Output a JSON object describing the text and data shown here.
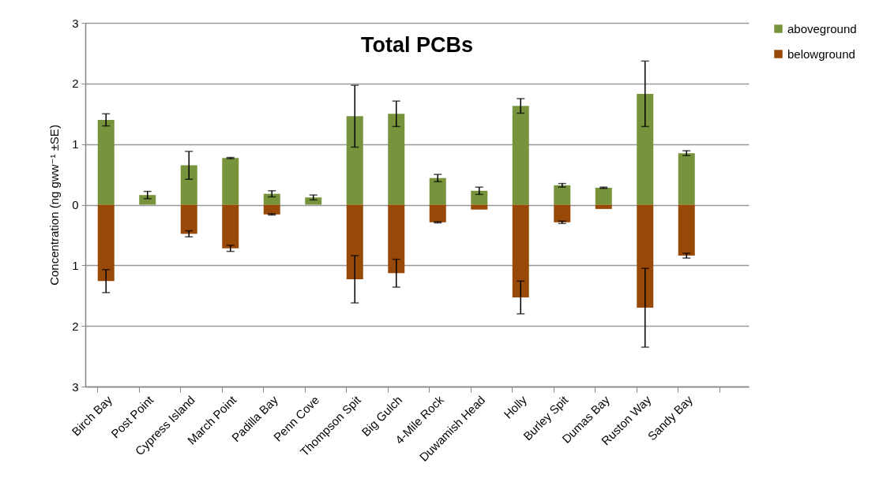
{
  "chart_data": {
    "type": "bar",
    "title": "Total PCBs",
    "ylabel": "Concentration (ng gww⁻¹  ±SE)",
    "categories": [
      "Birch Bay",
      "Post Point",
      "Cypress Island",
      "March Point",
      "Padilla Bay",
      "Penn Cove",
      "Thompson Spit",
      "Big Gulch",
      "4-Mile Rock",
      "Duwamish Head",
      "Holly",
      "Burley Spit",
      "Dumas Bay",
      "Ruston Way",
      "Sandy Bay",
      null
    ],
    "stacked": true,
    "series": [
      {
        "name": "aboveground",
        "color": "#77933c",
        "values": [
          1.4,
          0.16,
          0.65,
          0.77,
          0.18,
          0.12,
          1.46,
          1.5,
          0.44,
          0.23,
          1.63,
          0.32,
          0.28,
          1.83,
          0.85,
          null
        ],
        "errors": [
          0.1,
          0.06,
          0.23,
          0.01,
          0.05,
          0.04,
          0.51,
          0.21,
          0.06,
          0.06,
          0.12,
          0.03,
          0.01,
          0.54,
          0.04,
          null
        ]
      },
      {
        "name": "belowground",
        "color": "#984807",
        "values": [
          -1.26,
          0,
          -0.48,
          -0.72,
          -0.16,
          0,
          -1.23,
          -1.13,
          -0.29,
          -0.08,
          -1.53,
          -0.29,
          -0.07,
          -1.7,
          -0.84,
          null
        ],
        "errors": [
          0.19,
          null,
          0.05,
          0.05,
          0.01,
          null,
          0.39,
          0.23,
          0.01,
          null,
          0.27,
          0.02,
          null,
          0.65,
          0.04,
          null
        ]
      }
    ],
    "ylim": [
      -3,
      3
    ],
    "yticks": [
      {
        "value": -3,
        "label": "3"
      },
      {
        "value": -2,
        "label": "2"
      },
      {
        "value": -1,
        "label": "1"
      },
      0,
      1,
      2,
      3
    ],
    "grid": "y",
    "legend": "top right"
  }
}
